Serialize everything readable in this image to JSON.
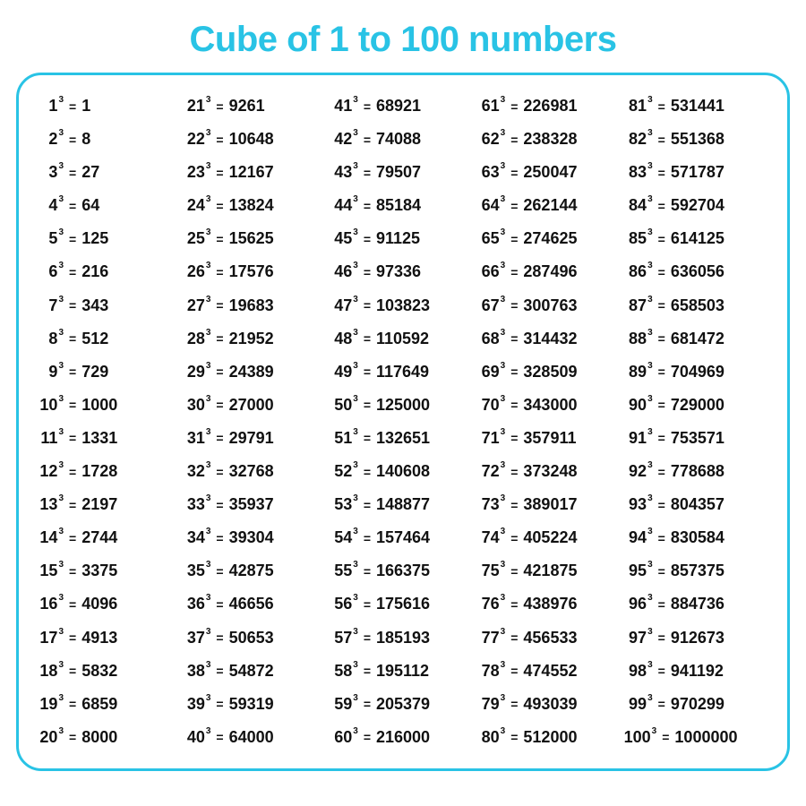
{
  "title": "Cube of 1 to 100 numbers",
  "title_color": "#29c3e5",
  "title_fontsize": 40,
  "border_color": "#29c3e5",
  "border_width": 3,
  "text_color": "#111111",
  "base_fontsize": 18,
  "exp_fontsize": 10,
  "eq_fontsize": 14,
  "val_fontsize": 18,
  "exp_label": "3",
  "eq_label": "=",
  "columns": 5,
  "rows_per_column": 20,
  "items": [
    {
      "n": 1,
      "cube": 1
    },
    {
      "n": 2,
      "cube": 8
    },
    {
      "n": 3,
      "cube": 27
    },
    {
      "n": 4,
      "cube": 64
    },
    {
      "n": 5,
      "cube": 125
    },
    {
      "n": 6,
      "cube": 216
    },
    {
      "n": 7,
      "cube": 343
    },
    {
      "n": 8,
      "cube": 512
    },
    {
      "n": 9,
      "cube": 729
    },
    {
      "n": 10,
      "cube": 1000
    },
    {
      "n": 11,
      "cube": 1331
    },
    {
      "n": 12,
      "cube": 1728
    },
    {
      "n": 13,
      "cube": 2197
    },
    {
      "n": 14,
      "cube": 2744
    },
    {
      "n": 15,
      "cube": 3375
    },
    {
      "n": 16,
      "cube": 4096
    },
    {
      "n": 17,
      "cube": 4913
    },
    {
      "n": 18,
      "cube": 5832
    },
    {
      "n": 19,
      "cube": 6859
    },
    {
      "n": 20,
      "cube": 8000
    },
    {
      "n": 21,
      "cube": 9261
    },
    {
      "n": 22,
      "cube": 10648
    },
    {
      "n": 23,
      "cube": 12167
    },
    {
      "n": 24,
      "cube": 13824
    },
    {
      "n": 25,
      "cube": 15625
    },
    {
      "n": 26,
      "cube": 17576
    },
    {
      "n": 27,
      "cube": 19683
    },
    {
      "n": 28,
      "cube": 21952
    },
    {
      "n": 29,
      "cube": 24389
    },
    {
      "n": 30,
      "cube": 27000
    },
    {
      "n": 31,
      "cube": 29791
    },
    {
      "n": 32,
      "cube": 32768
    },
    {
      "n": 33,
      "cube": 35937
    },
    {
      "n": 34,
      "cube": 39304
    },
    {
      "n": 35,
      "cube": 42875
    },
    {
      "n": 36,
      "cube": 46656
    },
    {
      "n": 37,
      "cube": 50653
    },
    {
      "n": 38,
      "cube": 54872
    },
    {
      "n": 39,
      "cube": 59319
    },
    {
      "n": 40,
      "cube": 64000
    },
    {
      "n": 41,
      "cube": 68921
    },
    {
      "n": 42,
      "cube": 74088
    },
    {
      "n": 43,
      "cube": 79507
    },
    {
      "n": 44,
      "cube": 85184
    },
    {
      "n": 45,
      "cube": 91125
    },
    {
      "n": 46,
      "cube": 97336
    },
    {
      "n": 47,
      "cube": 103823
    },
    {
      "n": 48,
      "cube": 110592
    },
    {
      "n": 49,
      "cube": 117649
    },
    {
      "n": 50,
      "cube": 125000
    },
    {
      "n": 51,
      "cube": 132651
    },
    {
      "n": 52,
      "cube": 140608
    },
    {
      "n": 53,
      "cube": 148877
    },
    {
      "n": 54,
      "cube": 157464
    },
    {
      "n": 55,
      "cube": 166375
    },
    {
      "n": 56,
      "cube": 175616
    },
    {
      "n": 57,
      "cube": 185193
    },
    {
      "n": 58,
      "cube": 195112
    },
    {
      "n": 59,
      "cube": 205379
    },
    {
      "n": 60,
      "cube": 216000
    },
    {
      "n": 61,
      "cube": 226981
    },
    {
      "n": 62,
      "cube": 238328
    },
    {
      "n": 63,
      "cube": 250047
    },
    {
      "n": 64,
      "cube": 262144
    },
    {
      "n": 65,
      "cube": 274625
    },
    {
      "n": 66,
      "cube": 287496
    },
    {
      "n": 67,
      "cube": 300763
    },
    {
      "n": 68,
      "cube": 314432
    },
    {
      "n": 69,
      "cube": 328509
    },
    {
      "n": 70,
      "cube": 343000
    },
    {
      "n": 71,
      "cube": 357911
    },
    {
      "n": 72,
      "cube": 373248
    },
    {
      "n": 73,
      "cube": 389017
    },
    {
      "n": 74,
      "cube": 405224
    },
    {
      "n": 75,
      "cube": 421875
    },
    {
      "n": 76,
      "cube": 438976
    },
    {
      "n": 77,
      "cube": 456533
    },
    {
      "n": 78,
      "cube": 474552
    },
    {
      "n": 79,
      "cube": 493039
    },
    {
      "n": 80,
      "cube": 512000
    },
    {
      "n": 81,
      "cube": 531441
    },
    {
      "n": 82,
      "cube": 551368
    },
    {
      "n": 83,
      "cube": 571787
    },
    {
      "n": 84,
      "cube": 592704
    },
    {
      "n": 85,
      "cube": 614125
    },
    {
      "n": 86,
      "cube": 636056
    },
    {
      "n": 87,
      "cube": 658503
    },
    {
      "n": 88,
      "cube": 681472
    },
    {
      "n": 89,
      "cube": 704969
    },
    {
      "n": 90,
      "cube": 729000
    },
    {
      "n": 91,
      "cube": 753571
    },
    {
      "n": 92,
      "cube": 778688
    },
    {
      "n": 93,
      "cube": 804357
    },
    {
      "n": 94,
      "cube": 830584
    },
    {
      "n": 95,
      "cube": 857375
    },
    {
      "n": 96,
      "cube": 884736
    },
    {
      "n": 97,
      "cube": 912673
    },
    {
      "n": 98,
      "cube": 941192
    },
    {
      "n": 99,
      "cube": 970299
    },
    {
      "n": 100,
      "cube": 1000000
    }
  ]
}
